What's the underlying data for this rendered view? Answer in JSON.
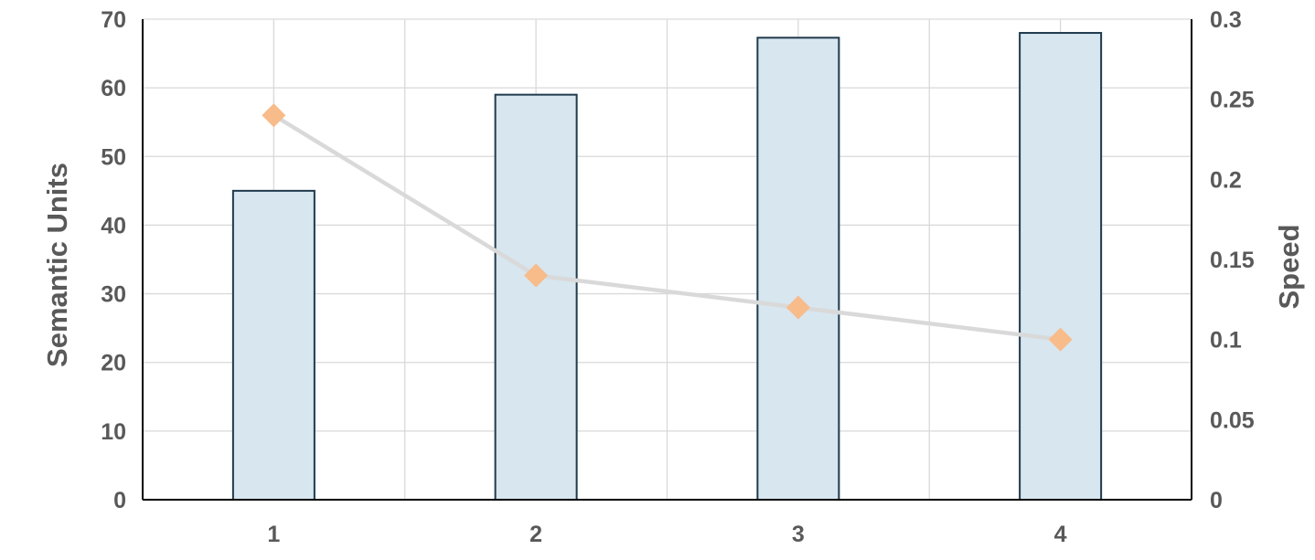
{
  "chart_data": {
    "type": "bar",
    "categories": [
      "1",
      "2",
      "3",
      "4"
    ],
    "series": [
      {
        "type": "bar",
        "axis": "left",
        "values": [
          45,
          59,
          67.3,
          68
        ]
      },
      {
        "type": "line",
        "axis": "right",
        "marker": "diamond",
        "values": [
          0.24,
          0.14,
          0.12,
          0.1
        ]
      }
    ],
    "ylabel": "Semantic Units",
    "y2label": "Speed",
    "ylim": [
      0,
      70
    ],
    "y2lim": [
      0,
      0.3
    ],
    "yticks": [
      "0",
      "10",
      "20",
      "30",
      "40",
      "50",
      "60",
      "70"
    ],
    "y2ticks": [
      "0",
      "0.05",
      "0.1",
      "0.15",
      "0.2",
      "0.25",
      "0.3"
    ],
    "grid": true,
    "colors": {
      "bar_fill": "#d7e6ef",
      "bar_stroke": "#1f3a4d",
      "line": "#d9d9d9",
      "marker": "#f8bb8a",
      "grid": "#d9d9d9",
      "axis": "#000000",
      "text": "#595959"
    }
  }
}
